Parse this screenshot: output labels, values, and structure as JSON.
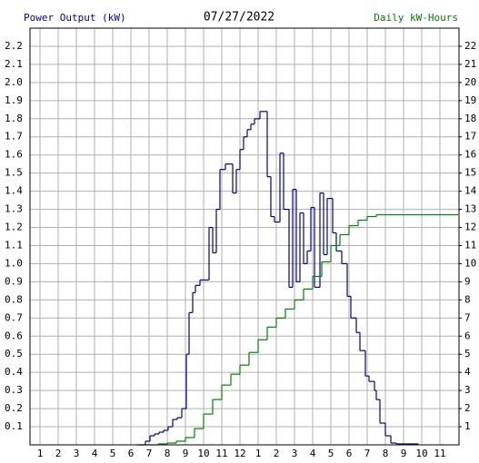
{
  "chart_data": {
    "type": "step",
    "title": "07/27/2022",
    "y_label": "Power Output (kW)",
    "y2_label": "Daily kW-Hours",
    "xlim": [
      0.45,
      24.05
    ],
    "xticks": [
      1,
      2,
      3,
      4,
      5,
      6,
      7,
      8,
      9,
      10,
      11,
      12,
      {
        "value": 13,
        "label": "1"
      },
      {
        "value": 14,
        "label": "2"
      },
      {
        "value": 15,
        "label": "3"
      },
      {
        "value": 16,
        "label": "4"
      },
      {
        "value": 17,
        "label": "5"
      },
      {
        "value": 18,
        "label": "6"
      },
      {
        "value": 19,
        "label": "7"
      },
      {
        "value": 20,
        "label": "8"
      },
      {
        "value": 21,
        "label": "9"
      },
      {
        "value": 22,
        "label": "10"
      },
      {
        "value": 23,
        "label": "11"
      }
    ],
    "ylim": [
      0,
      2.3
    ],
    "yticks": [
      0.1,
      0.2,
      0.3,
      0.4,
      0.5,
      0.6,
      0.7,
      0.8,
      0.9,
      {
        "value": 1,
        "label": "1.0"
      },
      1.1,
      1.2,
      1.3,
      1.4,
      1.5,
      1.6,
      1.7,
      1.8,
      1.9,
      {
        "value": 2,
        "label": "2.0"
      },
      2.1,
      2.2
    ],
    "y2lim": [
      0,
      23
    ],
    "y2ticks": [
      1,
      2,
      3,
      4,
      5,
      6,
      7,
      8,
      9,
      10,
      11,
      12,
      13,
      14,
      15,
      16,
      17,
      18,
      19,
      20,
      21,
      22
    ],
    "grid": true,
    "series": [
      {
        "name": "Power Output (kW)",
        "color": "#0000a0",
        "x": [
          6.3,
          6.8,
          7.05,
          7.3,
          7.55,
          7.8,
          8.05,
          8.3,
          8.55,
          8.8,
          9.05,
          9.2,
          9.4,
          9.55,
          9.8,
          10.05,
          10.3,
          10.5,
          10.7,
          10.9,
          11.2,
          11.6,
          11.8,
          12,
          12.2,
          12.4,
          12.6,
          12.8,
          13.1,
          13.5,
          13.7,
          13.9,
          14.2,
          14.4,
          14.7,
          14.9,
          15.1,
          15.3,
          15.5,
          15.7,
          15.9,
          16.1,
          16.4,
          16.6,
          16.8,
          17.1,
          17.3,
          17.6,
          17.9,
          18.1,
          18.4,
          18.6,
          18.9,
          19.1,
          19.4,
          19.5,
          19.7,
          20,
          20.3,
          20.6,
          21.8
        ],
        "values": [
          0,
          0.02,
          0.05,
          0.06,
          0.07,
          0.08,
          0.1,
          0.14,
          0.15,
          0.2,
          0.5,
          0.73,
          0.84,
          0.88,
          0.91,
          0.91,
          1.2,
          1.06,
          1.3,
          1.52,
          1.55,
          1.39,
          1.52,
          1.63,
          1.7,
          1.74,
          1.77,
          1.8,
          1.84,
          1.48,
          1.26,
          1.23,
          1.61,
          1.3,
          0.87,
          1.41,
          0.9,
          1.28,
          1.0,
          1.07,
          1.31,
          0.87,
          1.39,
          1.05,
          1.36,
          1.17,
          1.07,
          1.0,
          0.82,
          0.7,
          0.62,
          0.52,
          0.38,
          0.35,
          0.3,
          0.25,
          0.12,
          0.05,
          0.01,
          0.005,
          0
        ]
      },
      {
        "name": "Daily kW-Hours",
        "color": "#008000",
        "axis": "y2",
        "x": [
          6.5,
          7.5,
          8,
          8.5,
          9,
          9.5,
          10,
          10.5,
          11,
          11.5,
          12,
          12.5,
          13,
          13.5,
          14,
          14.5,
          15,
          15.5,
          16,
          16.5,
          17,
          17.5,
          18,
          18.5,
          19,
          19.5,
          24
        ],
        "values": [
          0,
          0.05,
          0.1,
          0.2,
          0.4,
          0.9,
          1.7,
          2.5,
          3.3,
          3.9,
          4.4,
          5.1,
          5.8,
          6.5,
          7.0,
          7.5,
          8.0,
          8.6,
          9.3,
          10.1,
          11.0,
          11.6,
          12.1,
          12.4,
          12.6,
          12.7,
          12.7
        ]
      }
    ]
  }
}
